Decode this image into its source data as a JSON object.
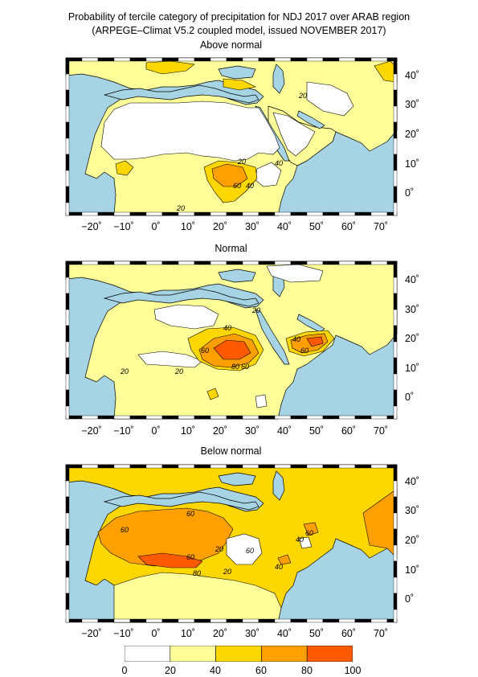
{
  "figure": {
    "title_line1": "Probability of tercile category of precipitation for NDJ 2017 over ARAB region",
    "title_line2": "(ARPEGE–Climat V5.2 coupled model, issued NOVEMBER 2017)"
  },
  "panels": [
    {
      "name": "above",
      "title": "Above normal"
    },
    {
      "name": "normal",
      "title": "Normal"
    },
    {
      "name": "below",
      "title": "Below normal"
    }
  ],
  "axes": {
    "lon_labels": [
      "−20˚",
      "−10˚",
      "0˚",
      "10˚",
      "20˚",
      "30˚",
      "40˚",
      "50˚",
      "60˚",
      "70˚"
    ],
    "lat_labels": [
      "40˚",
      "30˚",
      "20˚",
      "10˚",
      "0˚"
    ]
  },
  "colors": {
    "ocean": "#a7d4e4",
    "c0_20": "#ffffff",
    "c20_40": "#ffff99",
    "c40_60": "#ffd700",
    "c60_80": "#ffa000",
    "c80_100": "#ff5a00"
  },
  "colorbar": {
    "ticks": [
      "0",
      "20",
      "40",
      "60",
      "80",
      "100"
    ]
  },
  "contour_labels": {
    "above": [
      "20",
      "20",
      "40",
      "60",
      "40",
      "20"
    ],
    "normal": [
      "20",
      "40",
      "60",
      "80",
      "60",
      "20",
      "40",
      "60",
      "20"
    ],
    "below": [
      "60",
      "60",
      "60",
      "80",
      "60",
      "20",
      "20",
      "40",
      "40",
      "60"
    ]
  }
}
